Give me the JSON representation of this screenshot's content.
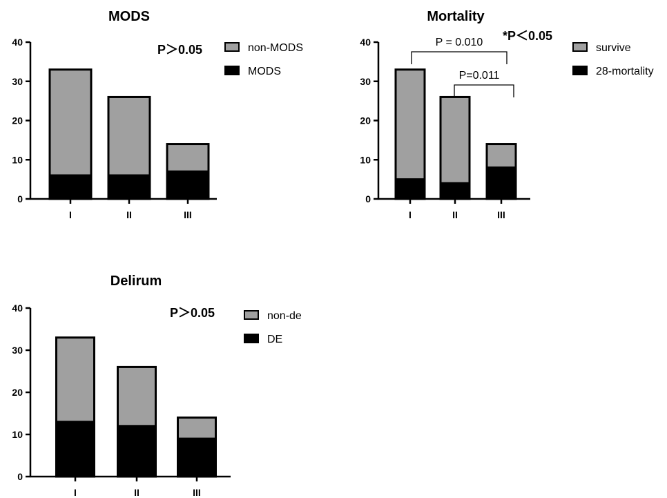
{
  "chart_data": [
    {
      "type": "bar",
      "stacked": true,
      "title": "MODS",
      "categories": [
        "I",
        "II",
        "III"
      ],
      "series": [
        {
          "name": "MODS",
          "values": [
            6,
            6,
            7
          ],
          "color": "#000000"
        },
        {
          "name": "non-MODS",
          "values": [
            27,
            20,
            7
          ],
          "color": "#a0a0a0"
        }
      ],
      "ylim": [
        0,
        40
      ],
      "yticks": [
        0,
        10,
        20,
        30,
        40
      ],
      "annotations": [
        "P＞0.05"
      ],
      "legend_position": "right"
    },
    {
      "type": "bar",
      "stacked": true,
      "title": "Mortality",
      "categories": [
        "I",
        "II",
        "III"
      ],
      "series": [
        {
          "name": "28-mortality",
          "values": [
            5,
            4,
            8
          ],
          "color": "#000000"
        },
        {
          "name": "survive",
          "values": [
            28,
            22,
            6
          ],
          "color": "#a0a0a0"
        }
      ],
      "ylim": [
        0,
        40
      ],
      "yticks": [
        0,
        10,
        20,
        30,
        40
      ],
      "annotations": [
        "*P＜0.05"
      ],
      "comparisons": [
        {
          "from": "I",
          "to": "III",
          "label": "P  = 0.010"
        },
        {
          "from": "II",
          "to": "III",
          "label": "P=0.011"
        }
      ],
      "legend_position": "right"
    },
    {
      "type": "bar",
      "stacked": true,
      "title": "Delirum",
      "categories": [
        "I",
        "II",
        "III"
      ],
      "series": [
        {
          "name": "DE",
          "values": [
            13,
            12,
            9
          ],
          "color": "#000000"
        },
        {
          "name": "non-de",
          "values": [
            20,
            14,
            5
          ],
          "color": "#a0a0a0"
        }
      ],
      "ylim": [
        0,
        40
      ],
      "yticks": [
        0,
        10,
        20,
        30,
        40
      ],
      "annotations": [
        "P＞0.05"
      ],
      "legend_position": "right"
    }
  ]
}
